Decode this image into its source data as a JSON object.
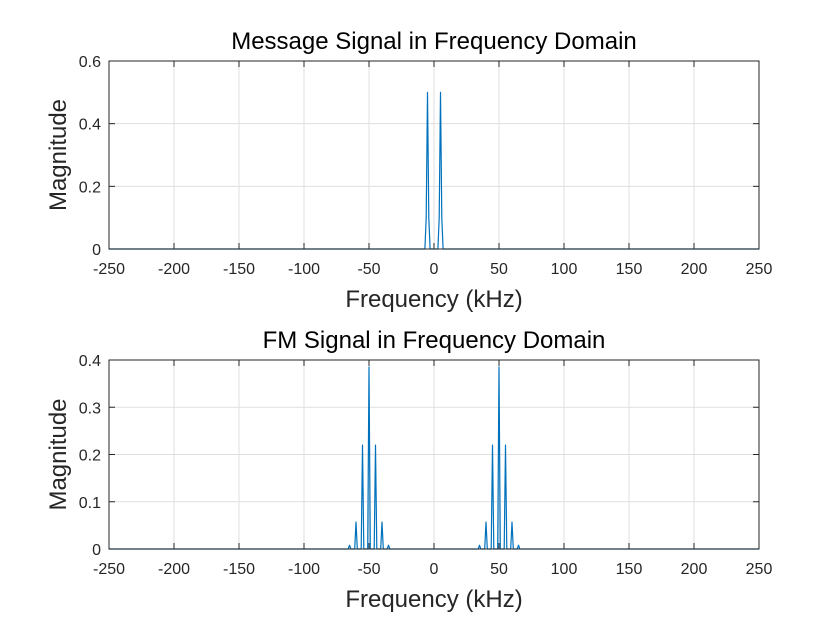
{
  "chart_data": [
    {
      "type": "line",
      "title": "Message Signal in Frequency Domain",
      "xlabel": "Frequency (kHz)",
      "ylabel": "Magnitude",
      "xlim": [
        -250,
        250
      ],
      "ylim": [
        0,
        0.6
      ],
      "xticks": [
        -250,
        -200,
        -150,
        -100,
        -50,
        0,
        50,
        100,
        150,
        200,
        250
      ],
      "yticks": [
        0,
        0.2,
        0.4,
        0.6
      ],
      "ytick_labels": [
        "0",
        "0.2",
        "0.4",
        "0.6"
      ],
      "grid": true,
      "color": "#0072BD",
      "series": [
        {
          "x": [
            -250,
            -7,
            -6,
            -5,
            -4,
            -3,
            3,
            4,
            5,
            6,
            7,
            250
          ],
          "y": [
            0,
            0,
            0.1,
            0.5,
            0.1,
            0,
            0,
            0.1,
            0.5,
            0.1,
            0,
            0
          ]
        }
      ]
    },
    {
      "type": "line",
      "title": "FM Signal in Frequency Domain",
      "xlabel": "Frequency (kHz)",
      "ylabel": "Magnitude",
      "xlim": [
        -250,
        250
      ],
      "ylim": [
        0,
        0.4
      ],
      "xticks": [
        -250,
        -200,
        -150,
        -100,
        -50,
        0,
        50,
        100,
        150,
        200,
        250
      ],
      "yticks": [
        0,
        0.1,
        0.2,
        0.3,
        0.4
      ],
      "ytick_labels": [
        "0",
        "0.1",
        "0.2",
        "0.3",
        "0.4"
      ],
      "grid": true,
      "color": "#0072BD",
      "series": [
        {
          "x": [
            -250,
            -66,
            -65,
            -64,
            -61,
            -60,
            -59,
            -56,
            -55,
            -54,
            -51,
            -50,
            -49,
            -46,
            -45,
            -44,
            -41,
            -40,
            -39,
            -36,
            -35,
            -34,
            34,
            35,
            36,
            39,
            40,
            41,
            44,
            45,
            46,
            49,
            50,
            51,
            54,
            55,
            56,
            59,
            60,
            61,
            64,
            65,
            66,
            250
          ],
          "y": [
            0,
            0,
            0.008,
            0,
            0,
            0.057,
            0,
            0,
            0.22,
            0,
            0,
            0.385,
            0,
            0,
            0.22,
            0,
            0,
            0.057,
            0,
            0,
            0.008,
            0,
            0,
            0.008,
            0,
            0,
            0.057,
            0,
            0,
            0.22,
            0,
            0,
            0.385,
            0,
            0,
            0.22,
            0,
            0,
            0.057,
            0,
            0,
            0.008,
            0,
            0
          ]
        }
      ]
    }
  ]
}
